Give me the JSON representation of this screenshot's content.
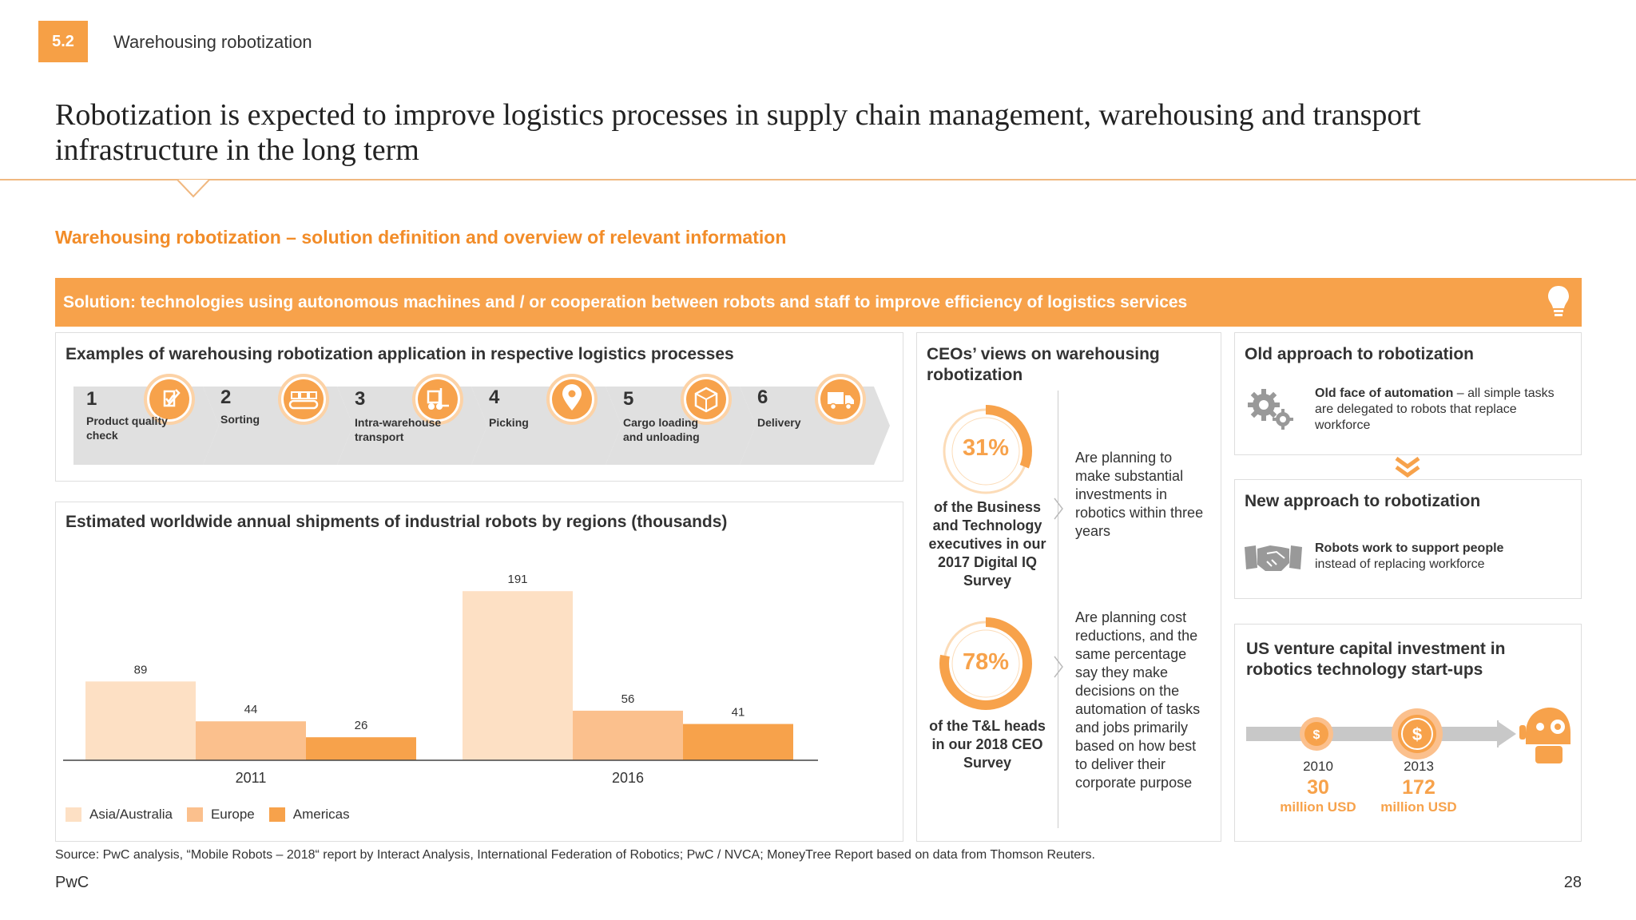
{
  "header": {
    "section_number": "5.2",
    "section_title": "Warehousing robotization",
    "title": "Robotization is expected to improve logistics processes in supply chain management, warehousing and transport infrastructure in the long term",
    "subtitle": "Warehousing robotization – solution definition and overview of relevant information"
  },
  "solution": {
    "text": "Solution: technologies using autonomous machines and / or cooperation between robots and staff to improve efficiency of logistics services",
    "icon": "lightbulb-icon"
  },
  "examples": {
    "title": "Examples of warehousing robotization application in respective logistics processes",
    "steps": [
      {
        "number": "1",
        "label": "Product quality check",
        "icon": "quality-check-icon"
      },
      {
        "number": "2",
        "label": "Sorting",
        "icon": "conveyor-icon"
      },
      {
        "number": "3",
        "label": "Intra-warehouse transport",
        "icon": "forklift-icon"
      },
      {
        "number": "4",
        "label": "Picking",
        "icon": "location-pin-icon"
      },
      {
        "number": "5",
        "label": "Cargo loading and unloading",
        "icon": "package-icon"
      },
      {
        "number": "6",
        "label": "Delivery",
        "icon": "truck-icon"
      }
    ]
  },
  "chart_data": {
    "type": "bar",
    "title": "Estimated worldwide annual shipments of industrial robots by regions (thousands)",
    "categories": [
      "2011",
      "2016"
    ],
    "series": [
      {
        "name": "Asia/Australia",
        "values": [
          89,
          191
        ],
        "color": "#fde0c4"
      },
      {
        "name": "Europe",
        "values": [
          44,
          56
        ],
        "color": "#fbc08d"
      },
      {
        "name": "Americas",
        "values": [
          26,
          41
        ],
        "color": "#f7a24b"
      }
    ],
    "ylim": [
      0,
      200
    ],
    "grid": false,
    "legend": "bottom-left"
  },
  "ceo": {
    "title": "CEOs’ views on warehousing robotization",
    "stats": [
      {
        "value": "31%",
        "fraction": 0.31,
        "caption": "of the Business and Technology executives in our 2017 Digital IQ Survey",
        "text": "Are planning to make substantial investments in robotics within three years"
      },
      {
        "value": "78%",
        "fraction": 0.78,
        "caption": "of the T&L heads in our 2018 CEO Survey",
        "text": "Are planning cost reductions, and the same percentage say they make decisions on the automation of tasks and jobs primarily based on how best to deliver their corporate purpose"
      }
    ]
  },
  "old_approach": {
    "title": "Old approach to robotization",
    "bold": "Old face of automation",
    "text": " – all simple tasks are delegated to robots that replace workforce",
    "icon": "gears-icon"
  },
  "new_approach": {
    "title": "New approach to robotization",
    "bold": "Robots work to support people",
    "text": "instead of replacing workforce",
    "icon": "handshake-icon"
  },
  "venture": {
    "title": "US venture capital investment in robotics technology start-ups",
    "points": [
      {
        "year": "2010",
        "value": "30",
        "unit": "million USD"
      },
      {
        "year": "2013",
        "value": "172",
        "unit": "million USD"
      }
    ],
    "icon": "robot-icon"
  },
  "footer": {
    "source": "Source: PwC analysis, “Mobile Robots – 2018“ report by Interact Analysis, International Federation of Robotics; PwC / NVCA; MoneyTree Report based on data from Thomson Reuters.",
    "brand": "PwC",
    "page": "28"
  },
  "colors": {
    "accent": "#f7a24b",
    "accent_dark": "#f28c28",
    "grey_arrow": "#e0e0e0"
  }
}
